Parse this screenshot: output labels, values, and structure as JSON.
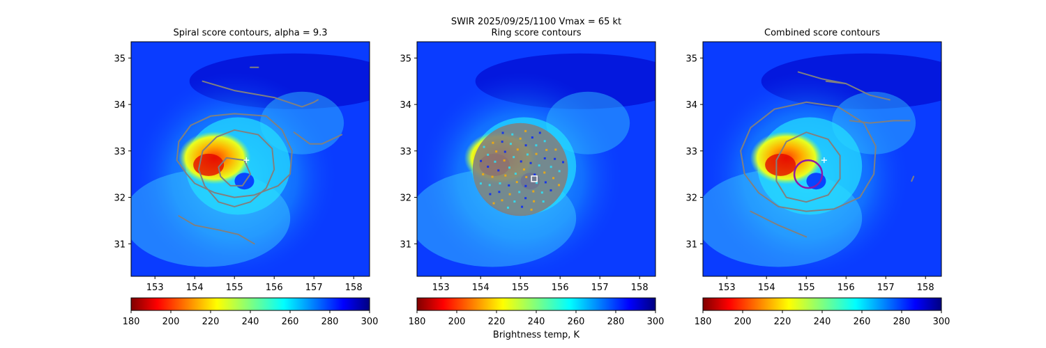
{
  "figure": {
    "suptitle": "SWIR  2025/09/25/1100    Vmax = 65 kt",
    "colorbar_label": "Brightness temp, K"
  },
  "colors": {
    "background_warm": "#0a3cff",
    "contour": "#808080",
    "marker": "#ffffff",
    "ring_circle": "#8b1aa8"
  },
  "chart_data": [
    {
      "type": "heatmap",
      "title": "Spiral score contours, alpha =  9.3",
      "xlim": [
        152.4,
        158.4
      ],
      "ylim": [
        30.3,
        35.35
      ],
      "x_ticks": [
        153,
        154,
        155,
        156,
        157,
        158
      ],
      "y_ticks": [
        31,
        32,
        33,
        34,
        35
      ],
      "colorbar": {
        "cmap": "jet_r",
        "range": [
          180,
          300
        ],
        "ticks": [
          180,
          200,
          220,
          240,
          260,
          280,
          300
        ]
      },
      "center_marker": {
        "lon": 155.3,
        "lat": 32.8,
        "shape": "plus"
      },
      "contours": [
        {
          "level": 1,
          "points": [
            [
              154.2,
              34.5
            ],
            [
              155,
              34.3
            ],
            [
              156,
              34.15
            ],
            [
              156.7,
              33.95
            ],
            [
              157,
              34.05
            ],
            [
              157.1,
              34.1
            ]
          ]
        },
        {
          "level": 1,
          "points": [
            [
              155.4,
              34.8
            ],
            [
              155.6,
              34.8
            ]
          ]
        },
        {
          "level": 2,
          "points": [
            [
              156.5,
              33.4
            ],
            [
              156.9,
              33.15
            ],
            [
              157.2,
              33.15
            ],
            [
              157.7,
              33.35
            ]
          ]
        },
        {
          "level": 3,
          "points": [
            [
              155,
              33.8
            ],
            [
              155.8,
              33.75
            ],
            [
              156.2,
              33.45
            ],
            [
              156.45,
              33
            ],
            [
              156.4,
              32.5
            ],
            [
              156.1,
              32.25
            ],
            [
              155.5,
              32.05
            ],
            [
              155,
              32
            ],
            [
              154.5,
              32.1
            ],
            [
              154,
              32.3
            ],
            [
              153.8,
              32.5
            ],
            [
              153.55,
              32.8
            ],
            [
              153.6,
              33.2
            ],
            [
              153.9,
              33.55
            ],
            [
              154.4,
              33.75
            ],
            [
              155,
              33.8
            ]
          ]
        },
        {
          "level": 4,
          "points": [
            [
              155,
              33.45
            ],
            [
              155.6,
              33.35
            ],
            [
              155.95,
              33.05
            ],
            [
              156,
              32.6
            ],
            [
              155.8,
              32.2
            ],
            [
              155.4,
              31.9
            ],
            [
              155,
              31.8
            ],
            [
              154.6,
              31.9
            ],
            [
              154.25,
              32.25
            ],
            [
              154.1,
              32.6
            ],
            [
              154.2,
              33
            ],
            [
              154.55,
              33.3
            ],
            [
              155,
              33.45
            ]
          ]
        },
        {
          "level": 5,
          "points": [
            [
              154.8,
              32.85
            ],
            [
              155.25,
              32.8
            ],
            [
              155.4,
              32.5
            ],
            [
              155.2,
              32.25
            ],
            [
              154.9,
              32.25
            ],
            [
              154.65,
              32.45
            ],
            [
              154.6,
              32.65
            ],
            [
              154.8,
              32.85
            ]
          ]
        },
        {
          "level": 6,
          "points": [
            [
              153.6,
              31.6
            ],
            [
              154,
              31.4
            ],
            [
              154.6,
              31.3
            ],
            [
              155.1,
              31.2
            ],
            [
              155.5,
              31
            ]
          ]
        }
      ]
    },
    {
      "type": "heatmap",
      "title": "Ring score contours",
      "xlim": [
        152.4,
        158.4
      ],
      "ylim": [
        30.3,
        35.35
      ],
      "x_ticks": [
        153,
        154,
        155,
        156,
        157,
        158
      ],
      "y_ticks": [
        31,
        32,
        33,
        34,
        35
      ],
      "colorbar": {
        "cmap": "jet_r",
        "range": [
          180,
          300
        ],
        "ticks": [
          180,
          200,
          220,
          240,
          260,
          280,
          300
        ]
      },
      "center_marker": {
        "lon": 155.35,
        "lat": 32.4,
        "shape": "square"
      },
      "ring_region": {
        "center_lon": 155.0,
        "center_lat": 32.6,
        "radius_deg_lon": 1.2,
        "radius_deg_lat": 1.0
      }
    },
    {
      "type": "heatmap",
      "title": "Combined score contours",
      "xlim": [
        152.4,
        158.4
      ],
      "ylim": [
        30.3,
        35.35
      ],
      "x_ticks": [
        153,
        154,
        155,
        156,
        157,
        158
      ],
      "y_ticks": [
        31,
        32,
        33,
        34,
        35
      ],
      "colorbar": {
        "cmap": "jet_r",
        "range": [
          180,
          300
        ],
        "ticks": [
          180,
          200,
          220,
          240,
          260,
          280,
          300
        ]
      },
      "center_marker": {
        "lon": 155.45,
        "lat": 32.8,
        "shape": "plus"
      },
      "best_circle": {
        "center_lon": 155.05,
        "center_lat": 32.5,
        "radius_deg": 0.35
      },
      "contours": [
        {
          "level": 1,
          "points": [
            [
              154.8,
              34.7
            ],
            [
              155.4,
              34.55
            ],
            [
              156,
              34.45
            ],
            [
              156.6,
              34.2
            ],
            [
              157.1,
              34.1
            ]
          ]
        },
        {
          "level": 1,
          "points": [
            [
              155.5,
              34.5
            ],
            [
              156,
              34.45
            ]
          ]
        },
        {
          "level": 2,
          "points": [
            [
              156.1,
              33.65
            ],
            [
              156.6,
              33.6
            ],
            [
              157.2,
              33.65
            ],
            [
              157.6,
              33.65
            ]
          ]
        },
        {
          "level": 3,
          "points": [
            [
              155,
              34.05
            ],
            [
              155.8,
              33.95
            ],
            [
              156.45,
              33.6
            ],
            [
              156.75,
              33.1
            ],
            [
              156.7,
              32.5
            ],
            [
              156.35,
              32
            ],
            [
              155.7,
              31.75
            ],
            [
              155,
              31.7
            ],
            [
              154.3,
              31.8
            ],
            [
              153.8,
              32.1
            ],
            [
              153.45,
              32.5
            ],
            [
              153.35,
              33
            ],
            [
              153.6,
              33.5
            ],
            [
              154.2,
              33.9
            ],
            [
              155,
              34.05
            ]
          ]
        },
        {
          "level": 4,
          "points": [
            [
              155,
              33.4
            ],
            [
              155.55,
              33.25
            ],
            [
              155.85,
              32.9
            ],
            [
              155.85,
              32.4
            ],
            [
              155.55,
              32.05
            ],
            [
              155,
              31.9
            ],
            [
              154.5,
              32
            ],
            [
              154.25,
              32.35
            ],
            [
              154.25,
              32.8
            ],
            [
              154.5,
              33.2
            ],
            [
              155,
              33.4
            ]
          ]
        },
        {
          "level": 5,
          "points": [
            [
              153.6,
              31.7
            ],
            [
              154.3,
              31.4
            ],
            [
              155,
              31.15
            ]
          ]
        },
        {
          "level": 6,
          "points": [
            [
              157.65,
              32.35
            ],
            [
              157.7,
              32.45
            ]
          ]
        }
      ]
    }
  ]
}
